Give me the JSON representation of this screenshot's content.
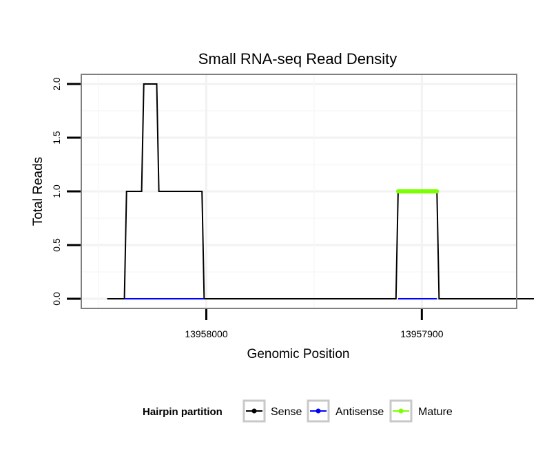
{
  "chart_data": {
    "type": "line",
    "title": "Small RNA-seq Read Density",
    "xlabel": "Genomic Position",
    "ylabel": "Total Reads",
    "x_reversed": true,
    "xlim": [
      14058,
      13856
    ],
    "ylim": [
      -0.09,
      2.09
    ],
    "y_ticks": [
      0.0,
      0.5,
      1.0,
      1.5,
      2.0
    ],
    "y_tick_labels": [
      "0.0",
      "0.5",
      "1.0",
      "1.5",
      "2.0"
    ],
    "x_ticks": [
      13958000,
      13957900
    ],
    "x_tick_labels": [
      "13958000",
      "13957900"
    ],
    "x_offset": 13944000,
    "grid": true,
    "series": [
      {
        "name": "Sense",
        "color": "#000000",
        "x": [
          14046,
          14038,
          14037,
          14030,
          14029,
          14023,
          14022,
          14015,
          14014,
          14008,
          14007,
          14002,
          14001,
          13912,
          13911,
          13893,
          13892,
          13848
        ],
        "y": [
          0,
          0,
          1,
          1,
          2,
          2,
          1,
          1,
          1,
          1,
          1,
          1,
          0,
          0,
          1,
          1,
          0,
          0
        ]
      },
      {
        "name": "Antisense",
        "color": "#0000ff",
        "segments": [
          [
            14038,
            14001
          ],
          [
            13911,
            13893
          ]
        ],
        "y": 0
      },
      {
        "name": "Mature",
        "color": "#7cff00",
        "segments": [
          [
            13911,
            13893
          ]
        ],
        "y": 1
      }
    ],
    "legend": {
      "title": "Hairpin partition",
      "position": "bottom",
      "entries": [
        "Sense",
        "Antisense",
        "Mature"
      ]
    }
  }
}
